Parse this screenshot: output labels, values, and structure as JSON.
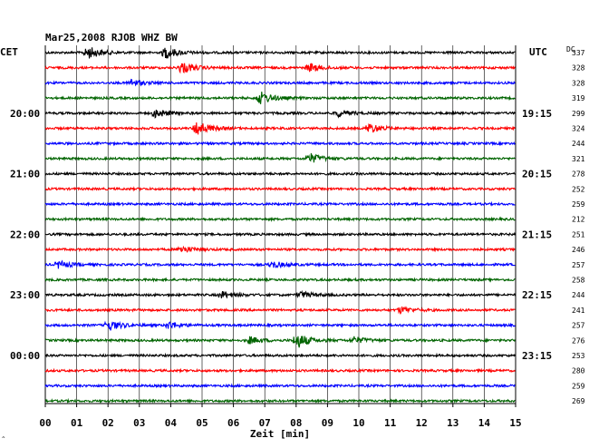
{
  "chart_data": {
    "type": "line",
    "title": "Mar25,2008  RJOB WHZ BW",
    "left_zone": "CET",
    "right_zone": "UTC",
    "dc_header": "DC",
    "xlabel": "Zeit [min]",
    "xlim": [
      0,
      15
    ],
    "x_ticks": [
      "00",
      "01",
      "02",
      "03",
      "04",
      "05",
      "06",
      "07",
      "08",
      "09",
      "10",
      "11",
      "12",
      "13",
      "14",
      "15"
    ],
    "trace_colors": [
      "#000000",
      "#ff0000",
      "#0000ff",
      "#006400"
    ],
    "left_time_labels": [
      {
        "trace": 4,
        "label": "20:00"
      },
      {
        "trace": 8,
        "label": "21:00"
      },
      {
        "trace": 12,
        "label": "22:00"
      },
      {
        "trace": 16,
        "label": "23:00"
      },
      {
        "trace": 20,
        "label": "00:00"
      }
    ],
    "right_time_labels": [
      {
        "trace": 4,
        "label": "19:15"
      },
      {
        "trace": 8,
        "label": "20:15"
      },
      {
        "trace": 12,
        "label": "21:15"
      },
      {
        "trace": 16,
        "label": "22:15"
      },
      {
        "trace": 20,
        "label": "23:15"
      }
    ],
    "dc_offsets": [
      337,
      328,
      328,
      319,
      299,
      324,
      244,
      321,
      278,
      252,
      259,
      212,
      251,
      246,
      257,
      258,
      244,
      241,
      257,
      276,
      253,
      280,
      259,
      269
    ],
    "events": [
      {
        "trace": 0,
        "minute": 1.3,
        "amplitude": 8
      },
      {
        "trace": 0,
        "minute": 3.8,
        "amplitude": 7
      },
      {
        "trace": 1,
        "minute": 4.3,
        "amplitude": 7
      },
      {
        "trace": 1,
        "minute": 8.4,
        "amplitude": 5
      },
      {
        "trace": 2,
        "minute": 2.7,
        "amplitude": 4
      },
      {
        "trace": 3,
        "minute": 6.8,
        "amplitude": 8
      },
      {
        "trace": 4,
        "minute": 3.5,
        "amplitude": 5
      },
      {
        "trace": 4,
        "minute": 9.3,
        "amplitude": 4
      },
      {
        "trace": 5,
        "minute": 4.8,
        "amplitude": 9
      },
      {
        "trace": 5,
        "minute": 10.3,
        "amplitude": 6
      },
      {
        "trace": 7,
        "minute": 8.4,
        "amplitude": 6
      },
      {
        "trace": 13,
        "minute": 4.3,
        "amplitude": 4
      },
      {
        "trace": 14,
        "minute": 0.4,
        "amplitude": 4
      },
      {
        "trace": 14,
        "minute": 7.2,
        "amplitude": 4
      },
      {
        "trace": 16,
        "minute": 5.6,
        "amplitude": 4
      },
      {
        "trace": 16,
        "minute": 8.1,
        "amplitude": 4
      },
      {
        "trace": 17,
        "minute": 11.3,
        "amplitude": 4
      },
      {
        "trace": 18,
        "minute": 2.0,
        "amplitude": 6
      },
      {
        "trace": 18,
        "minute": 3.9,
        "amplitude": 4
      },
      {
        "trace": 19,
        "minute": 6.5,
        "amplitude": 4
      },
      {
        "trace": 19,
        "minute": 8.0,
        "amplitude": 9
      },
      {
        "trace": 19,
        "minute": 9.8,
        "amplitude": 4
      }
    ]
  }
}
